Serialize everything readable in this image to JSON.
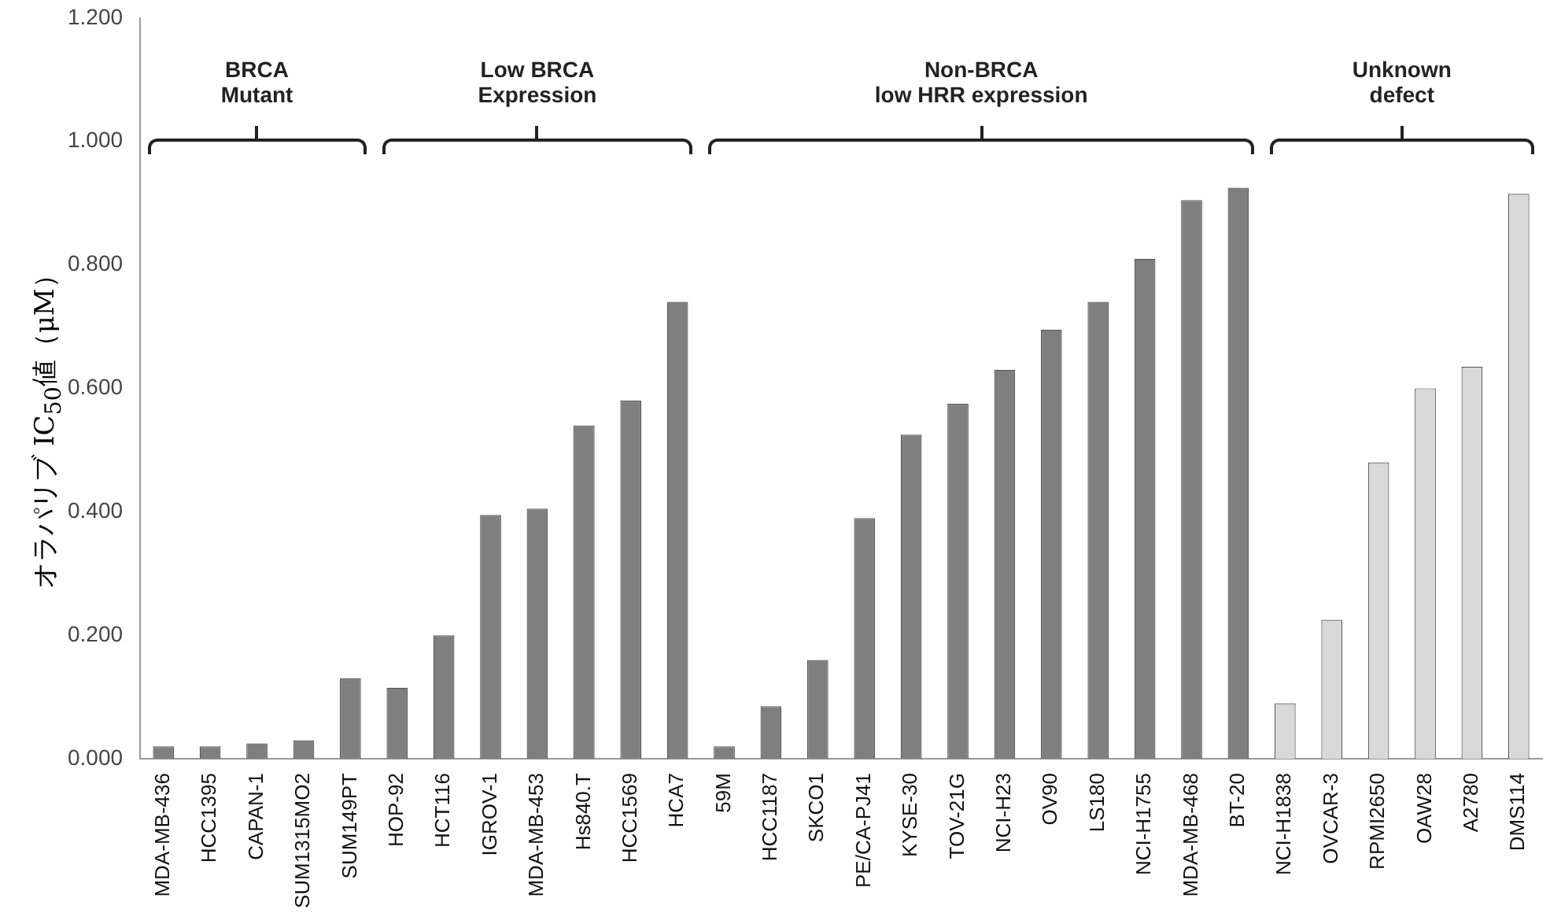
{
  "chart_data": {
    "type": "bar",
    "ylabel": "オラパリブ IC$_{50}$値（μM）",
    "categories": [
      "MDA-MB-436",
      "HCC1395",
      "CAPAN-1",
      "SUM1315MO2",
      "SUM149PT",
      "HOP-92",
      "HCT116",
      "IGROV-1",
      "MDA-MB-453",
      "Hs840.T",
      "HCC1569",
      "HCA7",
      "59M",
      "HCC1187",
      "SKCO1",
      "PE/CA-PJ41",
      "KYSE-30",
      "TOV-21G",
      "NCI-H23",
      "OV90",
      "LS180",
      "NCI-H1755",
      "MDA-MB-468",
      "BT-20",
      "NCI-H1838",
      "OVCAR-3",
      "RPMI2650",
      "OAW28",
      "A2780",
      "DMS114"
    ],
    "values": [
      0.02,
      0.02,
      0.025,
      0.03,
      0.13,
      0.115,
      0.2,
      0.395,
      0.405,
      0.54,
      0.58,
      0.74,
      0.02,
      0.085,
      0.16,
      0.39,
      0.525,
      0.575,
      0.63,
      0.695,
      0.74,
      0.81,
      0.905,
      0.925,
      0.09,
      0.225,
      0.48,
      0.6,
      0.635,
      0.915
    ],
    "colors": [
      "#7f7f7f",
      "#7f7f7f",
      "#7f7f7f",
      "#7f7f7f",
      "#7f7f7f",
      "#7f7f7f",
      "#7f7f7f",
      "#7f7f7f",
      "#7f7f7f",
      "#7f7f7f",
      "#7f7f7f",
      "#7f7f7f",
      "#7f7f7f",
      "#7f7f7f",
      "#7f7f7f",
      "#7f7f7f",
      "#7f7f7f",
      "#7f7f7f",
      "#7f7f7f",
      "#7f7f7f",
      "#7f7f7f",
      "#7f7f7f",
      "#7f7f7f",
      "#7f7f7f",
      "#d9d9d9",
      "#d9d9d9",
      "#d9d9d9",
      "#d9d9d9",
      "#d9d9d9",
      "#d9d9d9"
    ],
    "ylim": [
      0,
      1.2
    ],
    "yticks": [
      {
        "value": 0,
        "label": "0.000"
      },
      {
        "value": 0.2,
        "label": "0.200"
      },
      {
        "value": 0.4,
        "label": "0.400"
      },
      {
        "value": 0.6,
        "label": "0.600"
      },
      {
        "value": 0.8,
        "label": "0.800"
      },
      {
        "value": 1,
        "label": "1.000"
      },
      {
        "value": 1.2,
        "label": "1.200"
      }
    ],
    "annotations": [
      "BRCA\nMutant",
      "Low BRCA\nExpression",
      "Non-BRCA\nlow HRR expression",
      "Unknown\ndefect"
    ],
    "grid": false,
    "legend": false
  }
}
